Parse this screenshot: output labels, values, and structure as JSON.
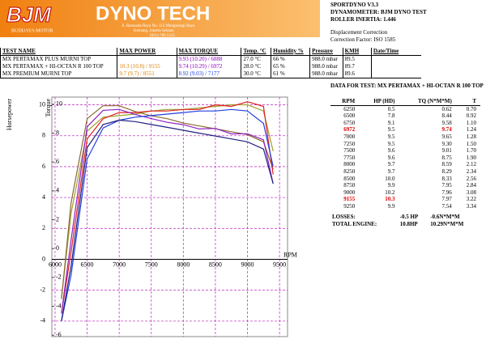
{
  "header": {
    "logo": "BJM",
    "logo_sub": "BUDIJAYA MOTOR",
    "title": "DYNO TECH",
    "address": [
      "Jl. Ramanda Raya No. 112 Mangarangi Raya",
      "Kemang, Jakarta Selatan",
      "(021) 780 5315"
    ]
  },
  "info": [
    "SPORTDYNO V3.3",
    "DYNAMOMETER: BJM DYNO TEST",
    "ROLLER INERTIA: 1.446",
    "Displacement Correction",
    "Correction Factor: ISO 1585"
  ],
  "tests": {
    "columns": [
      "TEST NAME",
      "MAX POWER",
      "MAX TORQUE",
      "Temp. °C",
      "Humidity %",
      "Pressure",
      "KMH",
      "Date/Time"
    ],
    "rows": [
      [
        "MX PERTAMAX PLUS MURNI TOP",
        null,
        "9.93 (10.20) / 6888",
        "27.0 °C",
        "66 %",
        "988.0 mbar",
        "89.5",
        null
      ],
      [
        "MX PERTAMAX + HI-OCTAN R 100 TOP",
        "10.3 (10.8) / 9155",
        "9.74 (10.29) / 6972",
        "28.0 °C",
        "65 %",
        "988.0 mbar",
        "89.7",
        null
      ],
      [
        "MX PREMIUM MURNI TOP",
        "9.7 (9.7) / 8551",
        "8.92 (9.03) / 7177",
        "30.0 °C",
        "61 %",
        "988.0 mbar",
        "89.6",
        null
      ]
    ]
  },
  "data_table": {
    "title": "DATA FOR TEST: MX PERTAMAX + HI-OCTAN R 100 TOP",
    "columns": [
      "RPM",
      "HP (HD)",
      "TQ (N*M*M)",
      "T"
    ],
    "rows": [
      [
        "6250",
        "0.5",
        "0.62",
        "0.70"
      ],
      [
        "6500",
        "7.8",
        "8.44",
        "0.92"
      ],
      [
        "6750",
        "9.1",
        "9.58",
        "1.10"
      ],
      [
        "6972",
        "9.5",
        "9.74",
        "1.24"
      ],
      [
        "7000",
        "9.5",
        "9.65",
        "1.28"
      ],
      [
        "7250",
        "9.5",
        "9.30",
        "1.50"
      ],
      [
        "7500",
        "9.6",
        "9.01",
        "1.70"
      ],
      [
        "7750",
        "9.6",
        "8.75",
        "1.90"
      ],
      [
        "8000",
        "9.7",
        "8.59",
        "2.12"
      ],
      [
        "8250",
        "9.7",
        "8.29",
        "2.34"
      ],
      [
        "8500",
        "10.0",
        "8.33",
        "2.56"
      ],
      [
        "8750",
        "9.9",
        "7.95",
        "2.84"
      ],
      [
        "9000",
        "10.2",
        "7.96",
        "3.08"
      ],
      [
        "9155",
        "10.3",
        "7.97",
        "3.22"
      ],
      [
        "9250",
        "9.9",
        "7.54",
        "3.34"
      ]
    ],
    "highlight": [
      [
        3,
        0
      ],
      [
        3,
        2
      ],
      [
        13,
        0
      ],
      [
        13,
        1
      ]
    ],
    "highlight_color": "#e00000"
  },
  "summary": [
    [
      "LOSSES:",
      "-0.5 HP",
      "-0.6N*M*M"
    ],
    [
      "TOTAL ENGINE:",
      "10.8HP",
      "10.29N*M*M"
    ]
  ],
  "chart_data": {
    "type": "line",
    "xlabel": "RPM",
    "ylabel": "Horsepower",
    "y2label": "Torque",
    "x": [
      6100,
      6250,
      6500,
      6750,
      7000,
      7250,
      7500,
      7750,
      8000,
      8250,
      8500,
      8750,
      9000,
      9250,
      9400
    ],
    "xlim": [
      5950,
      9625
    ],
    "xticks": [
      6000,
      6500,
      7000,
      7500,
      8000,
      8500,
      9000,
      9500
    ],
    "ylim": [
      -5,
      10.5
    ],
    "yticks": [
      -4,
      -2,
      0,
      2,
      4,
      6,
      8,
      10
    ],
    "y2lim": [
      -6.1,
      10.5
    ],
    "y2ticks": [
      -6,
      -4,
      -2,
      0,
      2,
      4,
      6,
      8,
      10
    ],
    "grid": true,
    "grid_color": "#c040c0",
    "series": [
      {
        "color": "#a0a030",
        "values": [
          -2.5,
          3.0,
          8.3,
          9.2,
          9.3,
          9.4,
          9.6,
          9.7,
          9.7,
          9.8,
          9.9,
          10.0,
          10.0,
          9.6,
          7.0
        ]
      },
      {
        "color": "#8a6a30",
        "axis": "y2",
        "values": [
          -3.5,
          3.2,
          9.0,
          9.9,
          9.9,
          9.5,
          9.2,
          9.0,
          8.7,
          8.5,
          8.3,
          8.1,
          7.9,
          7.4,
          5.5
        ]
      },
      {
        "color": "#e02020",
        "values": [
          -3.5,
          0.5,
          7.8,
          9.1,
          9.5,
          9.5,
          9.6,
          9.6,
          9.7,
          9.7,
          10.0,
          9.9,
          10.2,
          9.9,
          5.5
        ]
      },
      {
        "color": "#9020c0",
        "axis": "y2",
        "values": [
          -4.5,
          0.62,
          8.44,
          9.58,
          9.65,
          9.3,
          9.01,
          8.75,
          8.59,
          8.29,
          8.33,
          7.95,
          7.96,
          7.54,
          4.5
        ]
      },
      {
        "color": "#2040e0",
        "values": [
          -4,
          -1.0,
          6.5,
          8.5,
          9.0,
          9.2,
          9.3,
          9.4,
          9.5,
          9.6,
          9.6,
          9.7,
          9.6,
          8.8,
          6.0
        ]
      },
      {
        "color": "#202080",
        "axis": "y2",
        "values": [
          -5,
          -1.2,
          7.0,
          8.6,
          8.9,
          8.8,
          8.6,
          8.4,
          8.2,
          8.0,
          7.8,
          7.6,
          7.4,
          6.9,
          4.5
        ]
      }
    ]
  }
}
